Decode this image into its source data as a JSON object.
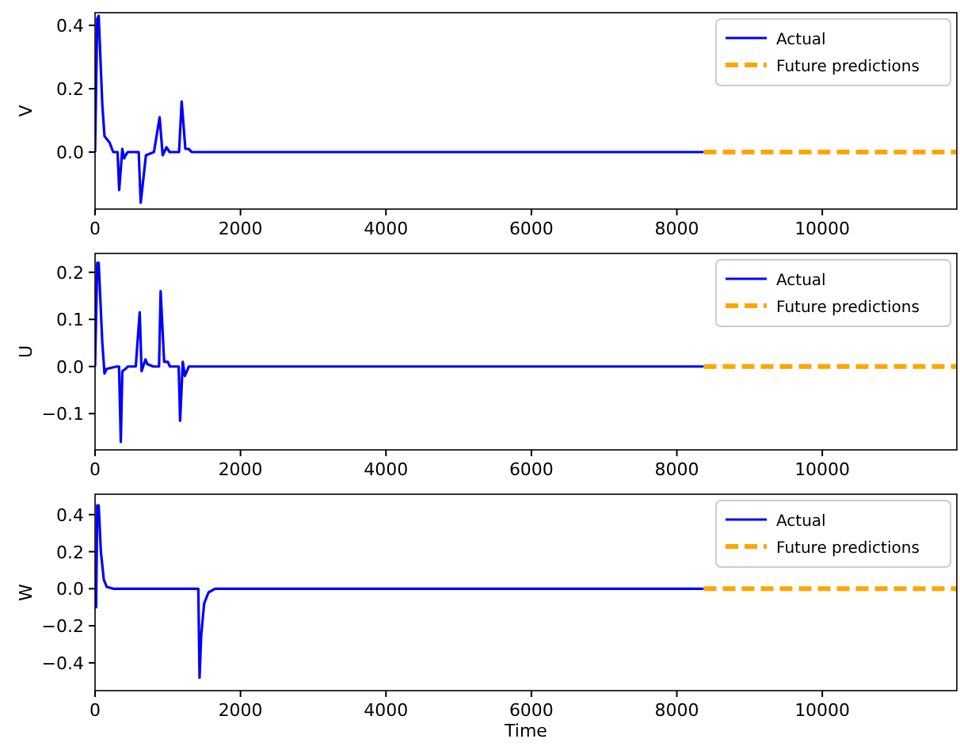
{
  "chart_data": [
    {
      "type": "line",
      "ylabel": "V",
      "xlim": [
        0,
        11850
      ],
      "xticks": [
        0,
        2000,
        4000,
        6000,
        8000,
        10000
      ],
      "ylim": [
        -0.18,
        0.44
      ],
      "yticks": [
        {
          "value": 0,
          "label": "0.0"
        },
        {
          "value": 0.2,
          "label": "0.2"
        },
        {
          "value": 0.4,
          "label": "0.4"
        }
      ],
      "legend": "top right",
      "series": [
        {
          "name": "Actual",
          "color": "#0000ff",
          "line_style": "solid",
          "x": [
            0,
            30,
            50,
            100,
            130,
            200,
            250,
            310,
            332,
            375,
            400,
            420,
            450,
            600,
            628,
            700,
            810,
            888,
            930,
            982,
            1025,
            1155,
            1191,
            1242,
            1285,
            1330,
            8370
          ],
          "values": [
            0,
            0.42,
            0.43,
            0.15,
            0.05,
            0.03,
            0,
            0,
            -0.12,
            0.01,
            -0.02,
            -0.01,
            0,
            0,
            -0.16,
            -0.01,
            0,
            0.11,
            -0.01,
            0.015,
            0,
            0,
            0.16,
            0.01,
            0.01,
            0,
            0
          ]
        },
        {
          "name": "Future predictions",
          "color": "#ffa500",
          "line_style": "dashed",
          "x": [
            8370,
            11850
          ],
          "values": [
            0,
            0
          ]
        }
      ]
    },
    {
      "type": "line",
      "ylabel": "U",
      "xlim": [
        0,
        11850
      ],
      "xticks": [
        0,
        2000,
        4000,
        6000,
        8000,
        10000
      ],
      "ylim": [
        -0.177,
        0.24
      ],
      "yticks": [
        {
          "value": -0.1,
          "label": "−0.1"
        },
        {
          "value": 0,
          "label": "0.0"
        },
        {
          "value": 0.1,
          "label": "0.1"
        },
        {
          "value": 0.2,
          "label": "0.2"
        }
      ],
      "legend": "top right",
      "series": [
        {
          "name": "Actual",
          "color": "#0000ff",
          "line_style": "solid",
          "x": [
            0,
            30,
            50,
            100,
            130,
            160,
            300,
            330,
            354,
            375,
            420,
            450,
            560,
            614,
            640,
            693,
            720,
            800,
            880,
            902,
            950,
            1000,
            1030,
            1150,
            1170,
            1206,
            1235,
            1290,
            1400,
            8370
          ],
          "values": [
            0,
            0.22,
            0.22,
            0.05,
            -0.015,
            -0.005,
            0,
            0,
            -0.16,
            -0.01,
            -0.005,
            0,
            0,
            0.115,
            -0.01,
            0.015,
            0.005,
            0,
            0,
            0.16,
            0.01,
            0.01,
            0,
            0,
            -0.115,
            0.01,
            -0.02,
            0,
            0,
            0
          ]
        },
        {
          "name": "Future predictions",
          "color": "#ffa500",
          "line_style": "dashed",
          "x": [
            8370,
            11850
          ],
          "values": [
            0,
            0
          ]
        }
      ]
    },
    {
      "type": "line",
      "ylabel": "W",
      "xlabel": "Time",
      "xlim": [
        0,
        11850
      ],
      "xticks": [
        0,
        2000,
        4000,
        6000,
        8000,
        10000
      ],
      "ylim": [
        -0.55,
        0.51
      ],
      "yticks": [
        {
          "value": -0.4,
          "label": "−0.4"
        },
        {
          "value": -0.2,
          "label": "−0.2"
        },
        {
          "value": 0,
          "label": "0.0"
        },
        {
          "value": 0.2,
          "label": "0.2"
        },
        {
          "value": 0.4,
          "label": "0.4"
        }
      ],
      "legend": "top right",
      "series": [
        {
          "name": "Actual",
          "color": "#0000ff",
          "line_style": "solid",
          "x": [
            0,
            15,
            30,
            50,
            80,
            120,
            160,
            250,
            1420,
            1437,
            1460,
            1500,
            1560,
            1650,
            1800,
            8370
          ],
          "values": [
            0,
            -0.1,
            0.45,
            0.45,
            0.2,
            0.05,
            0.01,
            0,
            0,
            -0.48,
            -0.25,
            -0.08,
            -0.02,
            0,
            0,
            0
          ]
        },
        {
          "name": "Future predictions",
          "color": "#ffa500",
          "line_style": "dashed",
          "x": [
            8370,
            11850
          ],
          "values": [
            0,
            0
          ]
        }
      ]
    }
  ]
}
